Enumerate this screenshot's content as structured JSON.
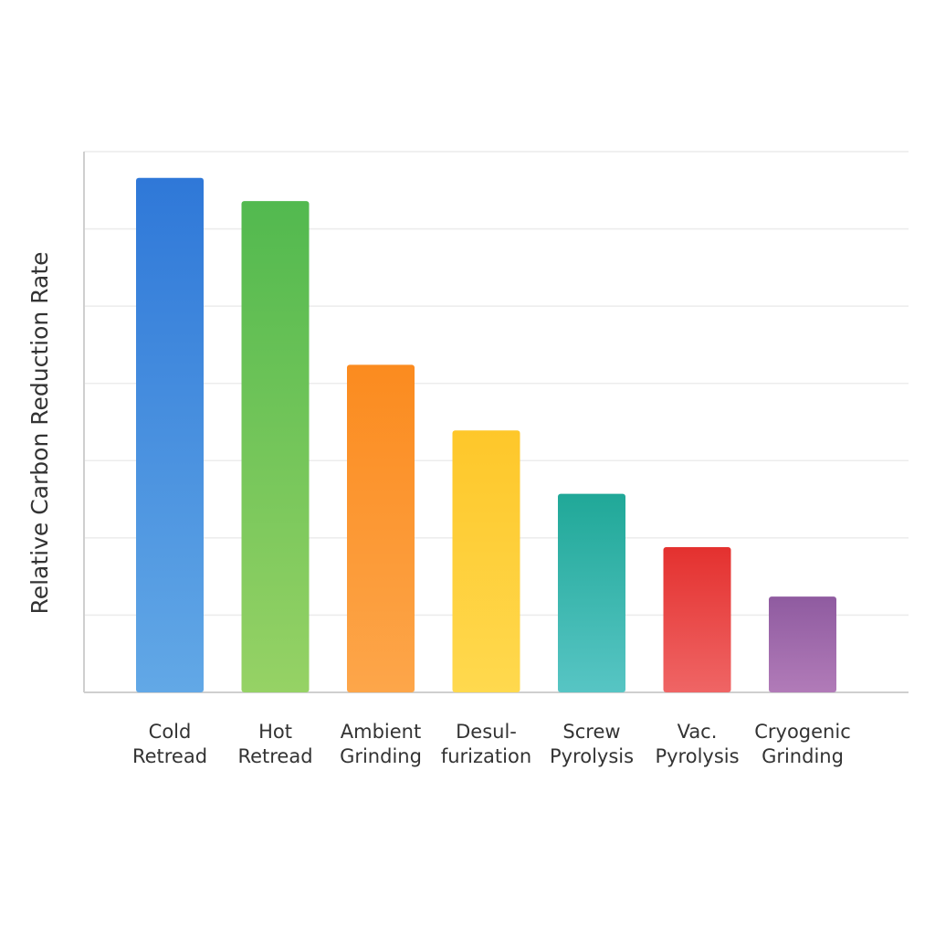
{
  "chart_data": {
    "type": "bar",
    "title": "",
    "xlabel": "",
    "ylabel": "Relative Carbon Reduction Rate",
    "ylim": [
      0,
      7
    ],
    "grid": true,
    "legend": "none",
    "categories": [
      [
        "Cold",
        "Retread"
      ],
      [
        "Hot",
        "Retread"
      ],
      [
        "Ambient",
        "Grinding"
      ],
      [
        "Desul-",
        "furization"
      ],
      [
        "Screw",
        "Pyrolysis"
      ],
      [
        "Vac.",
        "Pyrolysis"
      ],
      [
        "Cryogenic",
        "Grinding"
      ]
    ],
    "values": [
      6.66,
      6.36,
      4.24,
      3.39,
      2.57,
      1.88,
      1.24
    ],
    "colors": [
      [
        "#2f78d8",
        "#62a8e6"
      ],
      [
        "#52b94f",
        "#96d265"
      ],
      [
        "#fb8b1f",
        "#fda64a"
      ],
      [
        "#fec72a",
        "#ffd94e"
      ],
      [
        "#20a898",
        "#57c5c4"
      ],
      [
        "#e4312f",
        "#ef6565"
      ],
      [
        "#8f5ba0",
        "#b17bb8"
      ]
    ]
  }
}
